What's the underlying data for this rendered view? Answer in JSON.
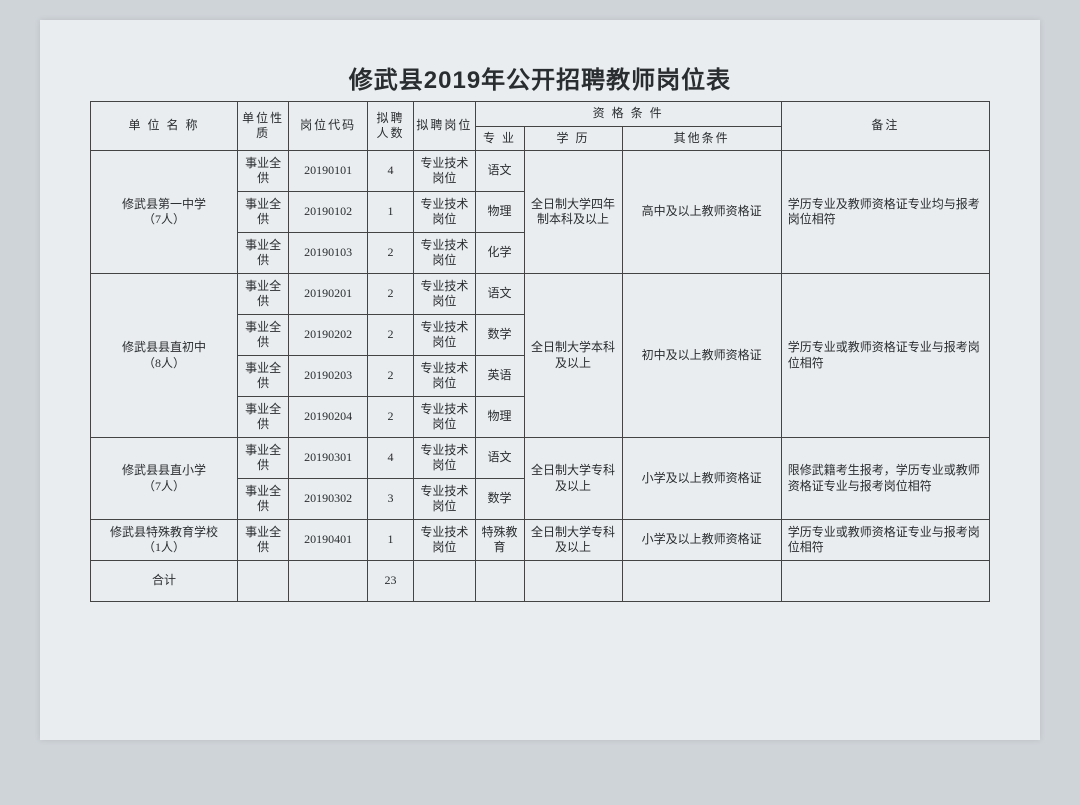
{
  "title": "修武县2019年公开招聘教师岗位表",
  "headers": {
    "unit": "单 位 名 称",
    "nature": "单位性质",
    "code": "岗位代码",
    "num": "拟聘人数",
    "pos": "拟聘岗位",
    "qual": "资 格 条 件",
    "major": "专 业",
    "edu": "学 历",
    "other": "其他条件",
    "remark": "备注"
  },
  "groups": [
    {
      "unit": "修武县第一中学\n（7人）",
      "edu": "全日制大学四年制本科及以上",
      "other": "高中及以上教师资格证",
      "remark": "学历专业及教师资格证专业均与报考岗位相符",
      "rows": [
        {
          "nature": "事业全供",
          "code": "20190101",
          "num": "4",
          "pos": "专业技术岗位",
          "major": "语文"
        },
        {
          "nature": "事业全供",
          "code": "20190102",
          "num": "1",
          "pos": "专业技术岗位",
          "major": "物理"
        },
        {
          "nature": "事业全供",
          "code": "20190103",
          "num": "2",
          "pos": "专业技术岗位",
          "major": "化学"
        }
      ]
    },
    {
      "unit": "修武县县直初中\n（8人）",
      "edu": "全日制大学本科及以上",
      "other": "初中及以上教师资格证",
      "remark": "学历专业或教师资格证专业与报考岗位相符",
      "rows": [
        {
          "nature": "事业全供",
          "code": "20190201",
          "num": "2",
          "pos": "专业技术岗位",
          "major": "语文"
        },
        {
          "nature": "事业全供",
          "code": "20190202",
          "num": "2",
          "pos": "专业技术岗位",
          "major": "数学"
        },
        {
          "nature": "事业全供",
          "code": "20190203",
          "num": "2",
          "pos": "专业技术岗位",
          "major": "英语"
        },
        {
          "nature": "事业全供",
          "code": "20190204",
          "num": "2",
          "pos": "专业技术岗位",
          "major": "物理"
        }
      ]
    },
    {
      "unit": "修武县县直小学\n（7人）",
      "edu": "全日制大学专科及以上",
      "other": "小学及以上教师资格证",
      "remark": "限修武籍考生报考，学历专业或教师资格证专业与报考岗位相符",
      "rows": [
        {
          "nature": "事业全供",
          "code": "20190301",
          "num": "4",
          "pos": "专业技术岗位",
          "major": "语文"
        },
        {
          "nature": "事业全供",
          "code": "20190302",
          "num": "3",
          "pos": "专业技术岗位",
          "major": "数学"
        }
      ]
    },
    {
      "unit": "修武县特殊教育学校\n（1人）",
      "edu": "全日制大学专科及以上",
      "other": "小学及以上教师资格证",
      "remark": "学历专业或教师资格证专业与报考岗位相符",
      "rows": [
        {
          "nature": "事业全供",
          "code": "20190401",
          "num": "1",
          "pos": "专业技术岗位",
          "major": "特殊教育"
        }
      ]
    }
  ],
  "total": {
    "label": "合计",
    "num": "23"
  }
}
